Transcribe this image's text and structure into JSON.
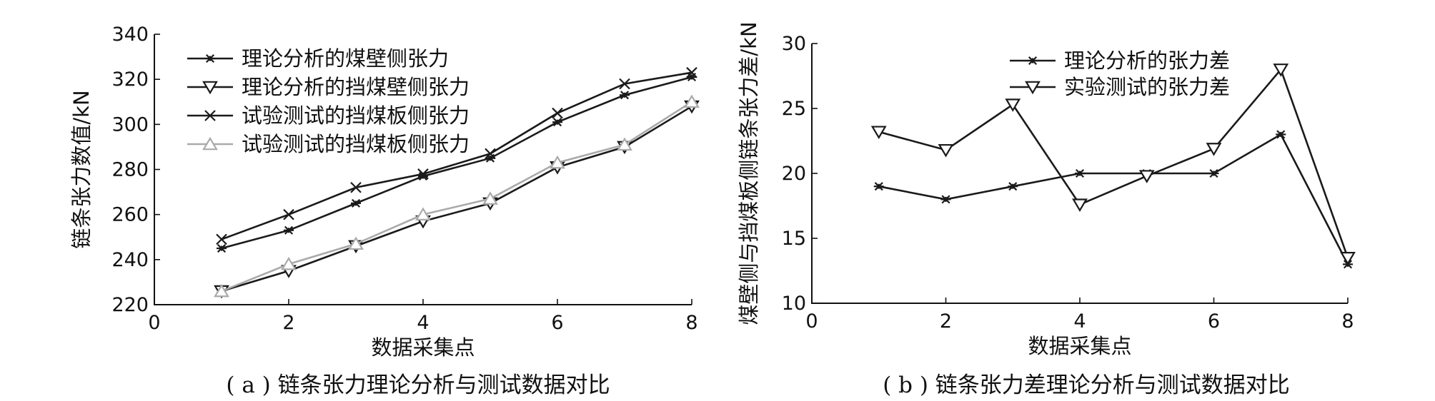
{
  "chart_data": [
    {
      "type": "line",
      "xlabel": "数据采集点",
      "ylabel": "链条张力数值/kN",
      "caption": "( a )  链条张力理论分析与测试数据对比",
      "xlim": [
        0,
        8
      ],
      "ylim": [
        220,
        340
      ],
      "xticks": [
        0,
        2,
        4,
        6,
        8
      ],
      "yticks": [
        220,
        240,
        260,
        280,
        300,
        320,
        340
      ],
      "grid": false,
      "legend_position": "top-left",
      "series": [
        {
          "name": "理论分析的煤壁侧张力",
          "marker": "asterisk",
          "color": "#1a1a1a",
          "x": [
            1,
            2,
            3,
            4,
            5,
            6,
            7,
            8
          ],
          "y": [
            245,
            253,
            265,
            277,
            285,
            301,
            313,
            321
          ]
        },
        {
          "name": "理论分析的挡煤壁侧张力",
          "marker": "triangle-down",
          "color": "#1a1a1a",
          "x": [
            1,
            2,
            3,
            4,
            5,
            6,
            7,
            8
          ],
          "y": [
            226,
            235,
            246,
            257,
            265,
            281,
            290,
            308
          ]
        },
        {
          "name": "试验测试的挡煤板侧张力",
          "marker": "x",
          "color": "#1a1a1a",
          "x": [
            1,
            2,
            3,
            4,
            5,
            6,
            7,
            8
          ],
          "y": [
            249,
            260,
            272,
            278,
            287,
            305,
            318,
            323
          ]
        },
        {
          "name": "试验测试的挡煤板侧张力",
          "marker": "triangle-up",
          "color": "#aaaaaa",
          "x": [
            1,
            2,
            3,
            4,
            5,
            6,
            7,
            8
          ],
          "y": [
            226,
            238,
            247,
            260,
            267,
            283,
            291,
            310
          ]
        }
      ]
    },
    {
      "type": "line",
      "xlabel": "数据采集点",
      "ylabel": "煤壁侧与挡煤板侧链条张力差/kN",
      "caption": "( b )  链条张力差理论分析与测试数据对比",
      "xlim": [
        0,
        8
      ],
      "ylim": [
        10,
        30
      ],
      "xticks": [
        0,
        2,
        4,
        6,
        8
      ],
      "yticks": [
        10,
        15,
        20,
        25,
        30
      ],
      "grid": false,
      "legend_position": "top-right",
      "series": [
        {
          "name": "理论分析的张力差",
          "marker": "asterisk",
          "color": "#1a1a1a",
          "x": [
            1,
            2,
            3,
            4,
            5,
            6,
            7,
            8
          ],
          "y": [
            19,
            18,
            19,
            20,
            20,
            20,
            23,
            13
          ]
        },
        {
          "name": "实验测试的张力差",
          "marker": "triangle-down",
          "color": "#1a1a1a",
          "x": [
            1,
            2,
            3,
            4,
            5,
            6,
            7,
            8
          ],
          "y": [
            23.2,
            21.8,
            25.3,
            17.6,
            19.8,
            21.9,
            28,
            13.5
          ]
        }
      ]
    }
  ]
}
